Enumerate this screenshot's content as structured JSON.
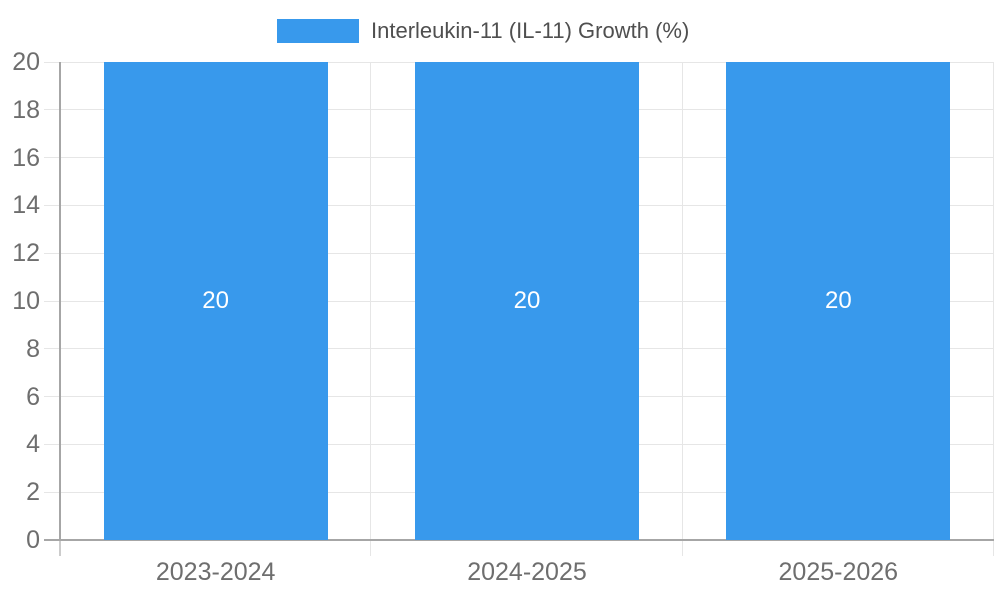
{
  "legend": {
    "label": "Interleukin-11 (IL-11) Growth (%)"
  },
  "chart_data": {
    "type": "bar",
    "title": "Interleukin-11 (IL-11) Growth (%)",
    "categories": [
      "2023-2024",
      "2024-2025",
      "2025-2026"
    ],
    "series": [
      {
        "name": "Interleukin-11 (IL-11) Growth (%)",
        "values": [
          20,
          20,
          20
        ]
      }
    ],
    "bar_value_labels": [
      "20",
      "20",
      "20"
    ],
    "xlabel": "",
    "ylabel": "",
    "ylim": [
      0,
      20
    ],
    "yticks": [
      0,
      2,
      4,
      6,
      8,
      10,
      12,
      14,
      16,
      18,
      20
    ],
    "grid": true,
    "legend_position": "top-center",
    "colors": {
      "bar": "#3899ec",
      "gridline": "#e6e6e6",
      "axis_line": "#a6a6a6",
      "outside_tick": "#d9d9d9",
      "tick_label_text": "#6e6e6e",
      "legend_text": "#4f4f4f",
      "bar_label_text": "#ffffff",
      "background": "#ffffff"
    }
  }
}
